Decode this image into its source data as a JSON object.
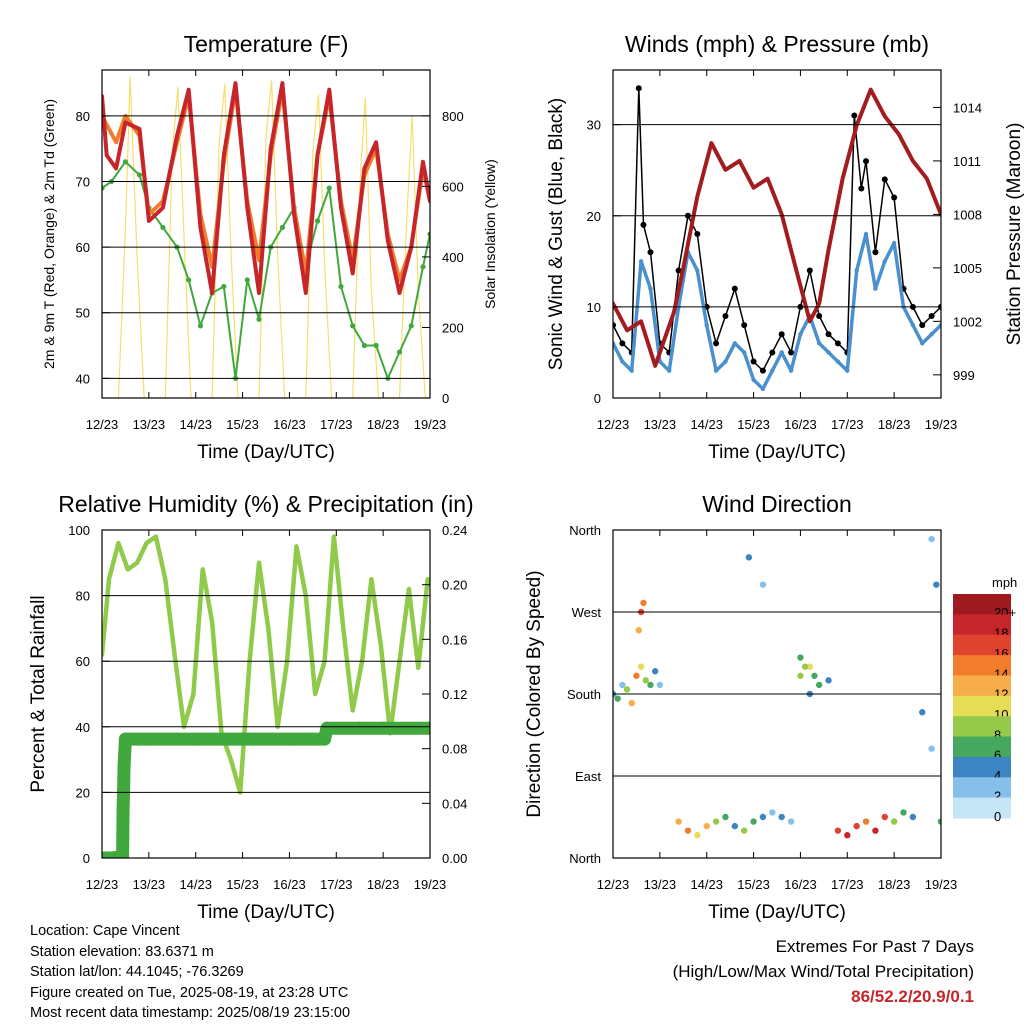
{
  "footer": {
    "location": "Location: Cape Vincent",
    "elevation": "Station elevation: 83.6371 m",
    "latlon": "Station lat/lon: 44.1045; -76.3269",
    "created": "Figure created on Tue, 2025-08-19, at 23:28 UTC",
    "recent": "Most recent data timestamp: 2025/08/19 23:15:00",
    "extremes_title": "Extremes For Past 7 Days",
    "extremes_subtitle": "(High/Low/Max Wind/Total Precipitation)",
    "extremes_values": "86/52.2/20.9/0.1"
  },
  "colors": {
    "temp_2m": "#c6262b",
    "temp_9m": "#f07c2c",
    "dewpoint": "#40a83c",
    "insolation": "#f6df6b",
    "rh": "#8fca4a",
    "rain": "#40a83c",
    "wind": "#4a90cf",
    "gust": "#000000",
    "pressure": "#a31c1f"
  },
  "chart_data": [
    {
      "type": "line",
      "title": "Temperature (F)",
      "xlabel": "Time (Day/UTC)",
      "ylabel": "2m & 9m T (Red, Orange) & 2m Td (Green)",
      "y2label": "Solar Insolation (Yellow)",
      "x_ticks": [
        "12/23",
        "13/23",
        "14/23",
        "15/23",
        "16/23",
        "17/23",
        "18/23",
        "19/23"
      ],
      "ylim": [
        37,
        87
      ],
      "y_ticks": [
        40,
        50,
        60,
        70,
        80
      ],
      "y2lim": [
        0,
        930
      ],
      "y2_ticks": [
        0,
        200,
        400,
        600,
        800
      ],
      "grid": true,
      "series": [
        {
          "name": "2m T",
          "color": "#c6262b",
          "x": [
            0,
            0.1,
            0.3,
            0.5,
            0.8,
            1.0,
            1.3,
            1.6,
            1.85,
            2.1,
            2.35,
            2.6,
            2.85,
            3.1,
            3.35,
            3.6,
            3.85,
            4.1,
            4.35,
            4.6,
            4.85,
            5.1,
            5.35,
            5.6,
            5.85,
            6.1,
            6.35,
            6.6,
            6.85,
            7.0
          ],
          "y": [
            83,
            74,
            72,
            79,
            78,
            64,
            66,
            77,
            84,
            63,
            53,
            74,
            85,
            66,
            53,
            75,
            85,
            65,
            53,
            74,
            84,
            66,
            56,
            72,
            76,
            61,
            53,
            60,
            73,
            67
          ]
        },
        {
          "name": "9m T",
          "color": "#f07c2c",
          "x": [
            0,
            0.3,
            0.5,
            0.8,
            1.0,
            1.3,
            1.6,
            1.85,
            2.1,
            2.35,
            2.6,
            2.85,
            3.1,
            3.35,
            3.6,
            3.85,
            4.1,
            4.35,
            4.6,
            4.85,
            5.1,
            5.35,
            5.6,
            5.85,
            6.1,
            6.35,
            6.6,
            6.85,
            7.0
          ],
          "y": [
            80,
            76,
            80,
            77,
            65,
            67,
            76,
            83,
            65,
            57,
            73,
            84,
            67,
            58,
            74,
            84,
            66,
            56,
            74,
            83,
            67,
            58,
            71,
            75,
            62,
            55,
            60,
            72,
            67
          ]
        },
        {
          "name": "2m Td",
          "color": "#40a83c",
          "x": [
            0,
            0.2,
            0.5,
            0.8,
            1.0,
            1.3,
            1.6,
            1.85,
            2.1,
            2.35,
            2.6,
            2.85,
            3.1,
            3.35,
            3.6,
            3.85,
            4.1,
            4.35,
            4.6,
            4.85,
            5.1,
            5.35,
            5.6,
            5.85,
            6.1,
            6.35,
            6.6,
            6.85,
            7.0
          ],
          "y": [
            69,
            70,
            73,
            71,
            66,
            63,
            60,
            55,
            48,
            53,
            54,
            40,
            55,
            49,
            60,
            63,
            66,
            57,
            64,
            69,
            54,
            48,
            45,
            45,
            40,
            44,
            48,
            57,
            62
          ]
        },
        {
          "name": "Solar Insolation",
          "color": "#f6df6b",
          "axis": "y2",
          "x": [
            0,
            0.35,
            0.5,
            0.6,
            0.75,
            0.9,
            1.35,
            1.5,
            1.62,
            1.75,
            1.9,
            2.35,
            2.5,
            2.62,
            2.75,
            2.9,
            3.35,
            3.5,
            3.62,
            3.75,
            3.9,
            4.35,
            4.5,
            4.62,
            4.75,
            4.9,
            5.35,
            5.5,
            5.62,
            5.75,
            5.9,
            6.35,
            6.5,
            6.62,
            6.75,
            6.9,
            7.0
          ],
          "y": [
            0,
            0,
            480,
            910,
            400,
            0,
            0,
            700,
            880,
            460,
            0,
            0,
            720,
            890,
            420,
            0,
            0,
            740,
            900,
            400,
            0,
            0,
            700,
            860,
            380,
            0,
            0,
            600,
            850,
            300,
            0,
            0,
            500,
            800,
            300,
            0,
            0
          ]
        }
      ]
    },
    {
      "type": "scatter",
      "title": "Winds (mph) & Pressure (mb)",
      "xlabel": "Time (Day/UTC)",
      "ylabel": "Sonic Wind & Gust (Blue, Black)",
      "y2label": "Station Pressure (Maroon)",
      "x_ticks": [
        "12/23",
        "13/23",
        "14/23",
        "15/23",
        "16/23",
        "17/23",
        "18/23",
        "19/23"
      ],
      "ylim": [
        0,
        36
      ],
      "y_ticks": [
        0,
        10,
        20,
        30
      ],
      "y2lim": [
        997.7,
        1016.1
      ],
      "y2_ticks": [
        999,
        1002,
        1005,
        1008,
        1011,
        1014
      ],
      "grid": true,
      "series": [
        {
          "name": "Sonic Wind",
          "color": "#4a90cf",
          "x": [
            0,
            0.2,
            0.4,
            0.6,
            0.8,
            1.0,
            1.2,
            1.4,
            1.6,
            1.8,
            2.0,
            2.2,
            2.4,
            2.6,
            2.8,
            3.0,
            3.2,
            3.4,
            3.6,
            3.8,
            4.0,
            4.2,
            4.4,
            4.6,
            4.8,
            5.0,
            5.2,
            5.4,
            5.6,
            5.8,
            6.0,
            6.2,
            6.4,
            6.6,
            6.8,
            7.0
          ],
          "y": [
            6,
            4,
            3,
            15,
            12,
            4,
            3,
            10,
            16,
            14,
            8,
            3,
            4,
            6,
            5,
            2,
            1,
            3,
            5,
            3,
            7,
            9,
            6,
            5,
            4,
            3,
            14,
            18,
            12,
            15,
            17,
            10,
            8,
            6,
            7,
            8
          ]
        },
        {
          "name": "Gust",
          "color": "#000000",
          "x": [
            0,
            0.2,
            0.4,
            0.55,
            0.65,
            0.8,
            1.0,
            1.2,
            1.4,
            1.6,
            1.8,
            2.0,
            2.2,
            2.4,
            2.6,
            2.8,
            3.0,
            3.2,
            3.4,
            3.6,
            3.8,
            4.0,
            4.2,
            4.4,
            4.6,
            4.8,
            5.0,
            5.15,
            5.3,
            5.4,
            5.6,
            5.8,
            6.0,
            6.2,
            6.4,
            6.6,
            6.8,
            7.0
          ],
          "y": [
            8,
            6,
            5,
            34,
            19,
            16,
            6,
            5,
            14,
            20,
            18,
            10,
            6,
            9,
            12,
            8,
            4,
            3,
            5,
            7,
            5,
            10,
            14,
            9,
            7,
            6,
            5,
            31,
            23,
            26,
            16,
            24,
            22,
            12,
            10,
            8,
            9,
            10
          ]
        },
        {
          "name": "Station Pressure",
          "color": "#a31c1f",
          "axis": "y2",
          "x": [
            0,
            0.3,
            0.6,
            0.9,
            1.1,
            1.3,
            1.5,
            1.8,
            2.1,
            2.4,
            2.7,
            3.0,
            3.3,
            3.6,
            3.9,
            4.2,
            4.4,
            4.6,
            4.9,
            5.2,
            5.5,
            5.8,
            6.1,
            6.4,
            6.7,
            7.0
          ],
          "y": [
            1003.0,
            1001.5,
            1002.0,
            999.5,
            1001.0,
            1002.5,
            1005.0,
            1009.0,
            1012.0,
            1010.5,
            1011.0,
            1009.5,
            1010.0,
            1008.0,
            1005.0,
            1002.0,
            1003.0,
            1006.0,
            1010.0,
            1013.0,
            1015.0,
            1013.5,
            1012.5,
            1011.0,
            1010.0,
            1008.0
          ]
        }
      ]
    },
    {
      "type": "line",
      "title": "Relative Humidity (%) & Precipitation (in)",
      "xlabel": "Time (Day/UTC)",
      "ylabel": "Percent & Total Rainfall",
      "x_ticks": [
        "12/23",
        "13/23",
        "14/23",
        "15/23",
        "16/23",
        "17/23",
        "18/23",
        "19/23"
      ],
      "ylim": [
        0,
        100
      ],
      "y_ticks": [
        0,
        20,
        40,
        60,
        80,
        100
      ],
      "y2lim": [
        0,
        0.24
      ],
      "y2_ticks": [
        "0.00",
        "0.04",
        "0.08",
        "0.12",
        "0.16",
        "0.20",
        "0.24"
      ],
      "grid": true,
      "series": [
        {
          "name": "Relative Humidity",
          "color": "#8fca4a",
          "x": [
            0,
            0.15,
            0.35,
            0.55,
            0.75,
            0.95,
            1.15,
            1.35,
            1.55,
            1.75,
            1.95,
            2.15,
            2.35,
            2.55,
            2.75,
            2.95,
            3.15,
            3.35,
            3.55,
            3.75,
            3.95,
            4.15,
            4.35,
            4.55,
            4.75,
            4.95,
            5.15,
            5.35,
            5.55,
            5.75,
            5.95,
            6.15,
            6.35,
            6.55,
            6.75,
            6.95
          ],
          "y": [
            62,
            85,
            96,
            88,
            90,
            96,
            98,
            85,
            62,
            40,
            50,
            88,
            72,
            38,
            30,
            20,
            60,
            90,
            70,
            40,
            60,
            95,
            80,
            50,
            60,
            98,
            70,
            45,
            60,
            85,
            65,
            38,
            60,
            82,
            58,
            85
          ]
        },
        {
          "name": "Total Rainfall",
          "color": "#40a83c",
          "axis": "y2",
          "x": [
            0,
            0.2,
            0.44,
            0.45,
            0.46,
            0.47,
            0.5,
            1.0,
            2.0,
            3.0,
            4.0,
            4.75,
            4.8,
            5.5,
            6.0,
            7.0
          ],
          "y": [
            0.0,
            0.0,
            0.001,
            0.036,
            0.05,
            0.066,
            0.087,
            0.087,
            0.087,
            0.087,
            0.087,
            0.087,
            0.095,
            0.095,
            0.095,
            0.095
          ]
        }
      ]
    },
    {
      "type": "scatter",
      "title": "Wind Direction",
      "xlabel": "Time (Day/UTC)",
      "ylabel": "Direction (Colored By Speed)",
      "x_ticks": [
        "12/23",
        "13/23",
        "14/23",
        "15/23",
        "16/23",
        "17/23",
        "18/23",
        "19/23"
      ],
      "ylim": [
        0,
        360
      ],
      "y_ticks": [
        "North",
        "East",
        "South",
        "West",
        "North"
      ],
      "grid": true,
      "legend": {
        "title": "mph",
        "labels": [
          "20+",
          "18",
          "16",
          "14",
          "12",
          "10",
          "8",
          "6",
          "4",
          "2",
          "0"
        ],
        "colors": [
          "#9e1a1f",
          "#c6262b",
          "#e0442e",
          "#f07c2c",
          "#f6ad4a",
          "#e6dc55",
          "#95c94a",
          "#45a85e",
          "#3d84c2",
          "#86c0ea",
          "#c6e6f8"
        ],
        "position": "right"
      },
      "series": [
        {
          "name": "Direction",
          "x": [
            0.0,
            0.1,
            0.2,
            0.3,
            0.4,
            0.5,
            0.6,
            0.7,
            0.8,
            0.9,
            1.0,
            1.4,
            1.6,
            1.8,
            2.0,
            2.2,
            2.4,
            2.6,
            2.8,
            3.0,
            3.2,
            3.4,
            3.6,
            3.8,
            4.0,
            4.2,
            4.4,
            4.6,
            4.8,
            5.0,
            5.2,
            5.4,
            5.6,
            5.8,
            6.0,
            6.2,
            6.4,
            6.6,
            6.8,
            7.0,
            0.55,
            0.6,
            0.65,
            2.9,
            3.2,
            4.0,
            4.1,
            4.2,
            4.3,
            6.8,
            6.9
          ],
          "y": [
            180,
            175,
            190,
            185,
            170,
            200,
            210,
            195,
            190,
            205,
            190,
            40,
            30,
            25,
            35,
            40,
            45,
            35,
            30,
            40,
            45,
            50,
            45,
            40,
            200,
            210,
            190,
            195,
            30,
            25,
            35,
            40,
            30,
            45,
            40,
            50,
            45,
            160,
            120,
            40,
            250,
            270,
            280,
            330,
            300,
            220,
            210,
            180,
            200,
            350,
            300
          ],
          "speed": [
            4,
            6,
            3,
            8,
            12,
            14,
            10,
            8,
            6,
            4,
            2,
            12,
            14,
            10,
            12,
            8,
            6,
            4,
            8,
            6,
            4,
            2,
            4,
            2,
            8,
            10,
            6,
            4,
            16,
            18,
            16,
            14,
            18,
            16,
            8,
            6,
            4,
            4,
            2,
            6,
            12,
            16,
            14,
            4,
            2,
            6,
            8,
            4,
            6,
            2,
            4
          ]
        }
      ]
    }
  ]
}
